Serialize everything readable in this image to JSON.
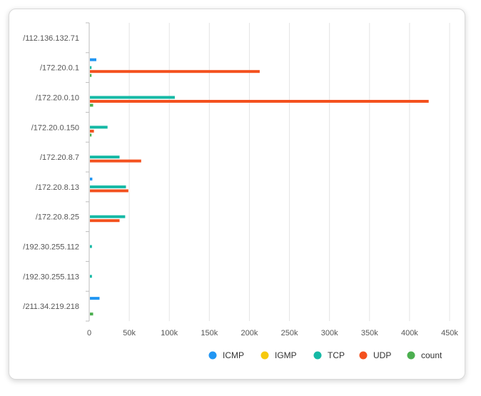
{
  "chart_data": {
    "type": "bar",
    "orientation": "horizontal",
    "categories": [
      "/112.136.132.71",
      "/172.20.0.1",
      "/172.20.0.10",
      "/172.20.0.150",
      "/172.20.8.7",
      "/172.20.8.13",
      "/172.20.8.25",
      "/192.30.255.112",
      "/192.30.255.113",
      "/211.34.219.218"
    ],
    "series": [
      {
        "name": "ICMP",
        "color": "#2196f3",
        "values": [
          0,
          8000,
          0,
          0,
          0,
          3000,
          0,
          0,
          0,
          12000
        ]
      },
      {
        "name": "IGMP",
        "color": "#f6c90e",
        "values": [
          0,
          0,
          0,
          0,
          0,
          0,
          0,
          0,
          0,
          0
        ]
      },
      {
        "name": "TCP",
        "color": "#16b9a5",
        "values": [
          0,
          2000,
          106000,
          22000,
          37000,
          45000,
          44000,
          2500,
          2500,
          0
        ]
      },
      {
        "name": "UDP",
        "color": "#f4511e",
        "values": [
          0,
          212000,
          423000,
          5000,
          64000,
          48000,
          37000,
          0,
          0,
          0
        ]
      },
      {
        "name": "count",
        "color": "#4caf50",
        "values": [
          0,
          2000,
          4000,
          2000,
          0,
          0,
          0,
          0,
          0,
          4000
        ]
      }
    ],
    "xticks": [
      "0",
      "50k",
      "100k",
      "150k",
      "200k",
      "250k",
      "300k",
      "350k",
      "400k",
      "450k"
    ],
    "xlim": [
      0,
      450000
    ],
    "grid": true,
    "legend": "bottom-right",
    "title": "",
    "xlabel": "",
    "ylabel": ""
  }
}
